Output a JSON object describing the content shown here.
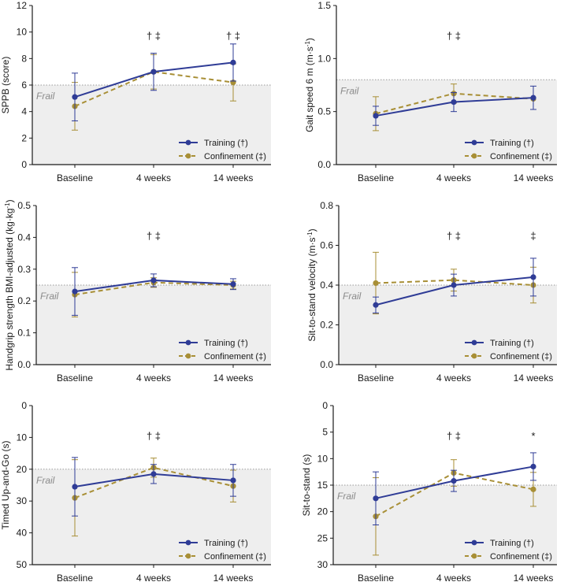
{
  "colors": {
    "training": "#2f3c96",
    "confinement": "#a88f36",
    "frail_fill": "#eeeeee",
    "frail_line": "#9a9a9a",
    "axis": "#1a1a1a"
  },
  "chart_data": [
    {
      "type": "line",
      "panel": "sppb",
      "ylabel": "SPPB (score)",
      "ylabel_parts": [
        {
          "t": "SPPB (score)"
        }
      ],
      "categories": [
        "Baseline",
        "4 weeks",
        "14 weeks"
      ],
      "ylim": [
        0,
        12
      ],
      "ticks": [
        0,
        2,
        4,
        6,
        8,
        10,
        12
      ],
      "tick_labels": [
        "0",
        "2",
        "4",
        "6",
        "8",
        "10",
        "12"
      ],
      "inverted": false,
      "frail_threshold": 6,
      "frail_label": "Frail",
      "series": [
        {
          "name": "Training (†)",
          "values": [
            5.1,
            7.0,
            7.7
          ],
          "err": [
            1.8,
            1.4,
            1.4
          ]
        },
        {
          "name": "Confinement (‡)",
          "values": [
            4.4,
            7.0,
            6.2
          ],
          "err": [
            1.8,
            1.3,
            1.4
          ]
        }
      ],
      "annotations": [
        "",
        "† ‡",
        "† ‡"
      ]
    },
    {
      "type": "line",
      "panel": "gait",
      "ylabel": "Gait speed 6 m (m·s-1)",
      "ylabel_parts": [
        {
          "t": "Gait speed 6 m (m·s"
        },
        {
          "t": "-1",
          "sup": true
        },
        {
          "t": ")"
        }
      ],
      "categories": [
        "Baseline",
        "4 weeks",
        "14 weeks"
      ],
      "ylim": [
        0,
        1.5
      ],
      "ticks": [
        0,
        0.5,
        1.0,
        1.5
      ],
      "tick_labels": [
        "0.0",
        "0.5",
        "1.0",
        "1.5"
      ],
      "inverted": false,
      "frail_threshold": 0.8,
      "frail_label": "Frail",
      "series": [
        {
          "name": "Training (†)",
          "values": [
            0.46,
            0.59,
            0.63
          ],
          "err": [
            0.09,
            0.09,
            0.11
          ]
        },
        {
          "name": "Confinement (‡)",
          "values": [
            0.48,
            0.67,
            0.62
          ],
          "err": [
            0.16,
            0.09,
            0.0
          ]
        }
      ],
      "annotations": [
        "",
        "† ‡",
        ""
      ]
    },
    {
      "type": "line",
      "panel": "handgrip",
      "ylabel": "Handgrip strength BMI-adjusted (kg·kg-1)",
      "ylabel_parts": [
        {
          "t": "Handgrip strength BMI-adjusted (kg·kg"
        },
        {
          "t": "-1",
          "sup": true
        },
        {
          "t": ")"
        }
      ],
      "categories": [
        "Baseline",
        "4 weeks",
        "14 weeks"
      ],
      "ylim": [
        0,
        0.5
      ],
      "ticks": [
        0,
        0.1,
        0.2,
        0.3,
        0.4,
        0.5
      ],
      "tick_labels": [
        "0.0",
        "0.1",
        "0.2",
        "0.3",
        "0.4",
        "0.5"
      ],
      "inverted": false,
      "frail_threshold": 0.25,
      "frail_label": "Frail",
      "series": [
        {
          "name": "Training (†)",
          "values": [
            0.23,
            0.265,
            0.253
          ],
          "err": [
            0.075,
            0.02,
            0.017
          ]
        },
        {
          "name": "Confinement (‡)",
          "values": [
            0.22,
            0.258,
            0.25
          ],
          "err": [
            0.07,
            0.015,
            0.012
          ]
        }
      ],
      "annotations": [
        "",
        "† ‡",
        ""
      ]
    },
    {
      "type": "line",
      "panel": "sts-velocity",
      "ylabel": "Sit-to-stand velocity (m·s-1)",
      "ylabel_parts": [
        {
          "t": "Sit-to-stand velocity (m·s"
        },
        {
          "t": "-1",
          "sup": true
        },
        {
          "t": ")"
        }
      ],
      "categories": [
        "Baseline",
        "4 weeks",
        "14 weeks"
      ],
      "ylim": [
        0,
        0.8
      ],
      "ticks": [
        0,
        0.2,
        0.4,
        0.6,
        0.8
      ],
      "tick_labels": [
        "0.0",
        "0.2",
        "0.4",
        "0.6",
        "0.8"
      ],
      "inverted": false,
      "frail_threshold": 0.4,
      "frail_label": "Frail",
      "series": [
        {
          "name": "Training (†)",
          "values": [
            0.3,
            0.4,
            0.44
          ],
          "err": [
            0.04,
            0.055,
            0.095
          ]
        },
        {
          "name": "Confinement (‡)",
          "values": [
            0.41,
            0.425,
            0.4
          ],
          "err": [
            0.155,
            0.055,
            0.09
          ]
        }
      ],
      "annotations": [
        "",
        "† ‡",
        "‡"
      ]
    },
    {
      "type": "line",
      "panel": "tug",
      "ylabel": "Timed Up-and-Go (s)",
      "ylabel_parts": [
        {
          "t": "Timed Up-and-Go (s)"
        }
      ],
      "categories": [
        "Baseline",
        "4 weeks",
        "14 weeks"
      ],
      "ylim": [
        0,
        50
      ],
      "ticks": [
        0,
        10,
        20,
        30,
        40,
        50
      ],
      "tick_labels": [
        "0",
        "10",
        "20",
        "30",
        "40",
        "50"
      ],
      "inverted": true,
      "frail_threshold": 20,
      "frail_label": "Frail",
      "series": [
        {
          "name": "Training (†)",
          "values": [
            25.5,
            21.5,
            23.5
          ],
          "err": [
            9.2,
            3.0,
            5.0
          ]
        },
        {
          "name": "Confinement (‡)",
          "values": [
            29.0,
            19.5,
            25.3
          ],
          "err": [
            12.0,
            3.0,
            5.0
          ]
        }
      ],
      "annotations": [
        "",
        "† ‡",
        ""
      ]
    },
    {
      "type": "line",
      "panel": "sts-time",
      "ylabel": "Sit-to-stand (s)",
      "ylabel_parts": [
        {
          "t": "Sit-to-stand (s)"
        }
      ],
      "categories": [
        "Baseline",
        "4 weeks",
        "14 weeks"
      ],
      "ylim": [
        0,
        30
      ],
      "ticks": [
        0,
        5,
        10,
        15,
        20,
        25,
        30
      ],
      "tick_labels": [
        "0",
        "5",
        "10",
        "15",
        "20",
        "25",
        "30"
      ],
      "inverted": true,
      "frail_threshold": 15,
      "frail_label": "Frail",
      "series": [
        {
          "name": "Training (†)",
          "values": [
            17.5,
            14.2,
            11.5
          ],
          "err": [
            5.0,
            2.0,
            2.6
          ]
        },
        {
          "name": "Confinement (‡)",
          "values": [
            20.9,
            12.7,
            15.8
          ],
          "err": [
            7.3,
            2.5,
            3.2
          ]
        }
      ],
      "annotations": [
        "",
        "† ‡",
        "*"
      ]
    }
  ]
}
